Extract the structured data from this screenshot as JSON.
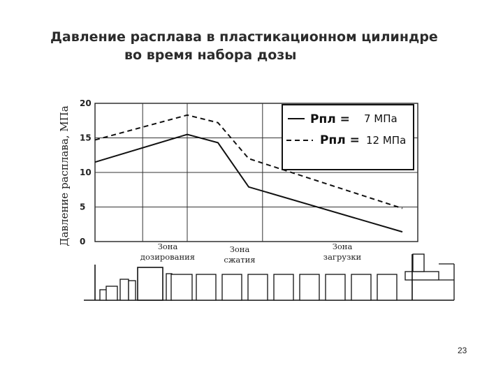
{
  "slide": {
    "title_line1": "Давление расплава в пластикационном цилиндре",
    "title_line2": "во время набора дозы",
    "page_number": "23"
  },
  "chart_data": {
    "type": "line",
    "ylabel": "Давление расплава, МПа",
    "xlabel": "",
    "ylim": [
      0,
      20
    ],
    "yticks": [
      0,
      5,
      10,
      15,
      20
    ],
    "grid": true,
    "x": [
      0,
      3,
      4,
      5,
      10
    ],
    "series": [
      {
        "name": "7 МПа",
        "legend_symbol": "Pпл =",
        "style": "solid",
        "values": [
          11.5,
          15.5,
          14.3,
          7.9,
          1.4
        ]
      },
      {
        "name": "12 МПа",
        "legend_symbol": "Pпл =",
        "style": "dashed",
        "values": [
          14.7,
          18.3,
          17.2,
          12.0,
          4.8
        ]
      }
    ],
    "zones": [
      "Зона дозирования",
      "Зона сжатия",
      "Зона загрузки"
    ],
    "legend_position": "top-right"
  }
}
